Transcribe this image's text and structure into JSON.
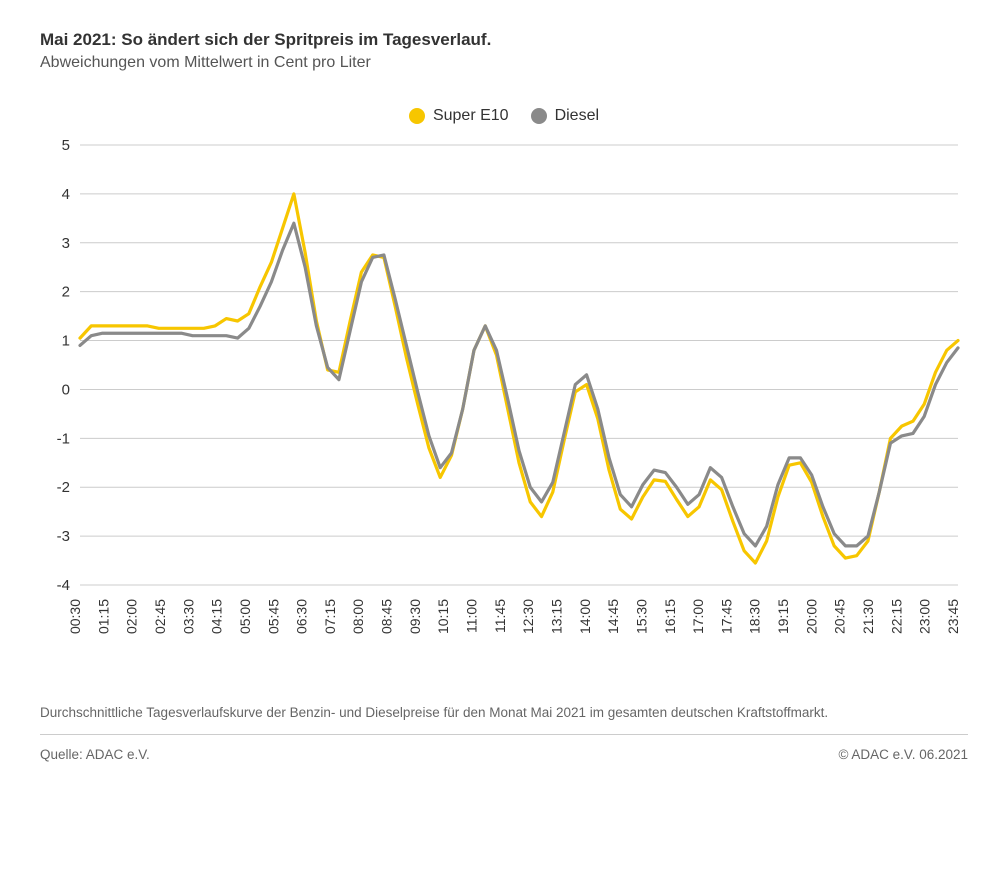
{
  "header": {
    "title": "Mai 2021:  So ändert sich der Spritpreis im Tagesverlauf.",
    "subtitle": "Abweichungen vom Mittelwert in Cent pro Liter"
  },
  "legend": {
    "series1": {
      "label": "Super E10",
      "color": "#f7c600"
    },
    "series2": {
      "label": "Diesel",
      "color": "#8a8a8a"
    }
  },
  "chart": {
    "type": "line",
    "ylim": [
      -4,
      5
    ],
    "ytick_step": 1,
    "grid_color": "#cccccc",
    "background_color": "#ffffff",
    "line_width": 3.2,
    "xlabels": [
      "00:30",
      "01:15",
      "02:00",
      "02:45",
      "03:30",
      "04:15",
      "05:00",
      "05:45",
      "06:30",
      "07:15",
      "08:00",
      "08:45",
      "09:30",
      "10:15",
      "11:00",
      "11:45",
      "12:30",
      "13:15",
      "14:00",
      "14:45",
      "15:30",
      "16:15",
      "17:00",
      "17:45",
      "18:30",
      "19:15",
      "20:00",
      "20:45",
      "21:30",
      "22:15",
      "23:00",
      "23:45"
    ],
    "label_fontsize": 14,
    "ylabel_fontsize": 15,
    "series": {
      "super_e10": {
        "color": "#f7c600",
        "values": [
          1.05,
          1.3,
          1.3,
          1.3,
          1.3,
          1.3,
          1.3,
          1.25,
          1.25,
          1.25,
          1.25,
          1.25,
          1.3,
          1.45,
          1.4,
          1.55,
          2.1,
          2.6,
          3.3,
          4.0,
          2.8,
          1.4,
          0.4,
          0.35,
          1.4,
          2.4,
          2.75,
          2.7,
          1.7,
          0.65,
          -0.3,
          -1.2,
          -1.8,
          -1.35,
          -0.4,
          0.8,
          1.3,
          0.7,
          -0.4,
          -1.5,
          -2.3,
          -2.6,
          -2.1,
          -1.05,
          -0.05,
          0.1,
          -0.6,
          -1.65,
          -2.45,
          -2.65,
          -2.2,
          -1.85,
          -1.88,
          -2.25,
          -2.6,
          -2.4,
          -1.85,
          -2.05,
          -2.7,
          -3.3,
          -3.55,
          -3.1,
          -2.2,
          -1.55,
          -1.5,
          -1.9,
          -2.6,
          -3.2,
          -3.45,
          -3.4,
          -3.1,
          -2.1,
          -1.0,
          -0.75,
          -0.65,
          -0.3,
          0.35,
          0.8,
          1.0
        ]
      },
      "diesel": {
        "color": "#8a8a8a",
        "values": [
          0.9,
          1.1,
          1.15,
          1.15,
          1.15,
          1.15,
          1.15,
          1.15,
          1.15,
          1.15,
          1.1,
          1.1,
          1.1,
          1.1,
          1.05,
          1.25,
          1.7,
          2.2,
          2.85,
          3.4,
          2.5,
          1.3,
          0.45,
          0.2,
          1.2,
          2.2,
          2.7,
          2.75,
          1.85,
          0.9,
          -0.05,
          -0.95,
          -1.6,
          -1.3,
          -0.4,
          0.8,
          1.3,
          0.8,
          -0.2,
          -1.25,
          -2.0,
          -2.3,
          -1.9,
          -0.9,
          0.1,
          0.3,
          -0.4,
          -1.4,
          -2.15,
          -2.4,
          -1.95,
          -1.65,
          -1.7,
          -2.0,
          -2.35,
          -2.15,
          -1.6,
          -1.8,
          -2.4,
          -2.95,
          -3.2,
          -2.8,
          -1.95,
          -1.4,
          -1.4,
          -1.75,
          -2.4,
          -2.95,
          -3.2,
          -3.2,
          -3.0,
          -2.1,
          -1.1,
          -0.95,
          -0.9,
          -0.55,
          0.1,
          0.55,
          0.85
        ]
      }
    }
  },
  "footnote": "Durchschnittliche Tagesverlaufskurve der Benzin- und Dieselpreise für den Monat Mai 2021 im gesamten deutschen Kraftstoffmarkt.",
  "footer": {
    "source": "Quelle: ADAC e.V.",
    "copyright": "© ADAC e.V. 06.2021"
  }
}
